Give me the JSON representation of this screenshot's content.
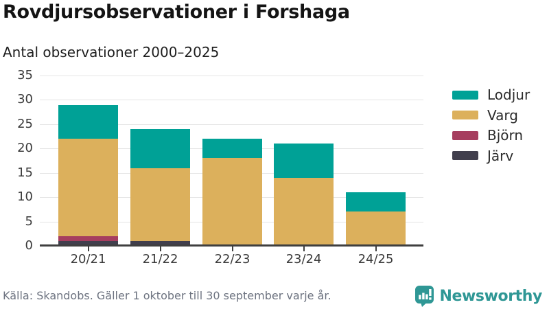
{
  "header": {
    "title": "Rovdjursobservationer i Forshaga",
    "subtitle": "Antal observationer 2000–2025"
  },
  "footer": {
    "source": "Källa: Skandobs. Gäller 1 oktober till 30 september varje år.",
    "brand": "Newsworthy",
    "brand_color": "#2f9795"
  },
  "chart_data": {
    "type": "bar",
    "stacked": true,
    "title": "Rovdjursobservationer i Forshaga",
    "subtitle": "Antal observationer 2000–2025",
    "categories": [
      "20/21",
      "21/22",
      "22/23",
      "23/24",
      "24/25"
    ],
    "series": [
      {
        "name": "Järv",
        "color": "#413F4D",
        "values": [
          1,
          1,
          0,
          0,
          0
        ]
      },
      {
        "name": "Björn",
        "color": "#A63E5F",
        "values": [
          1,
          0,
          0,
          0,
          0
        ]
      },
      {
        "name": "Varg",
        "color": "#DCB05C",
        "values": [
          20,
          15,
          18,
          14,
          7
        ]
      },
      {
        "name": "Lodjur",
        "color": "#00A196",
        "values": [
          7,
          8,
          4,
          7,
          4
        ]
      }
    ],
    "totals": [
      29,
      24,
      22,
      21,
      11
    ],
    "legend": [
      "Lodjur",
      "Varg",
      "Björn",
      "Järv"
    ],
    "legend_position": "right",
    "xlabel": "",
    "ylabel": "",
    "ylim": [
      0,
      35
    ],
    "y_ticks": [
      0,
      5,
      10,
      15,
      20,
      25,
      30,
      35
    ],
    "grid": true
  }
}
